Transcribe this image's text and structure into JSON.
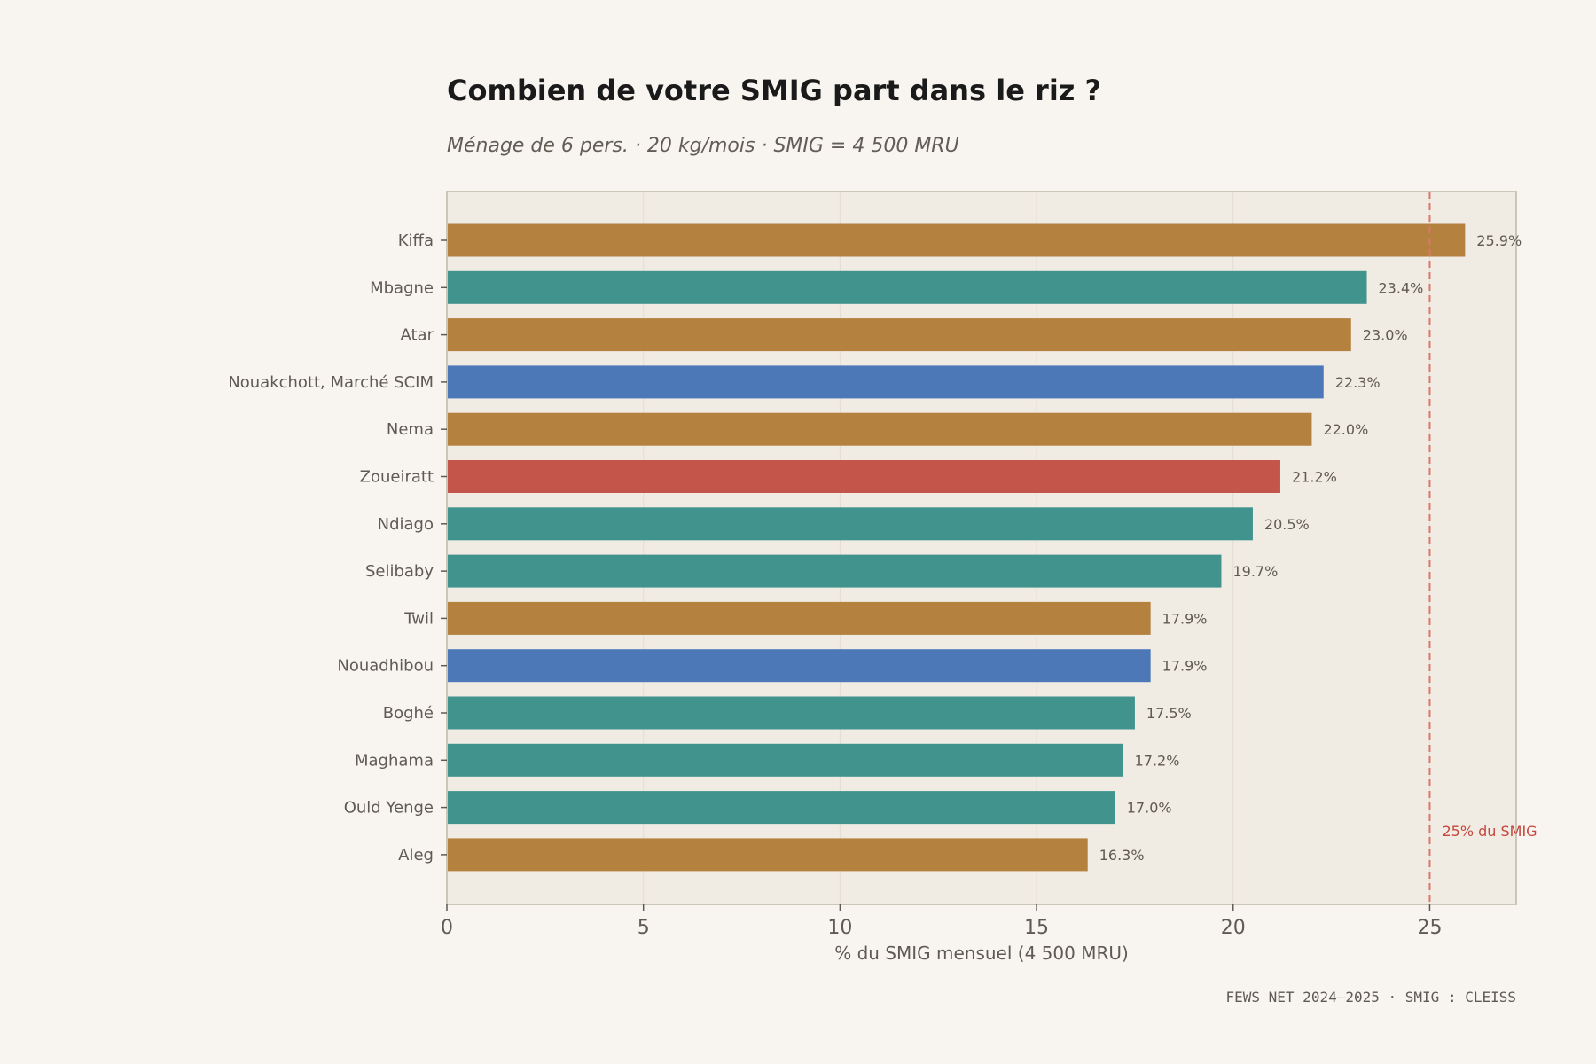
{
  "chart_data": {
    "type": "bar",
    "orientation": "horizontal",
    "title": "Combien de votre SMIG part dans le riz ?",
    "subtitle": "Ménage de 6 pers. · 20 kg/mois · SMIG = 4 500 MRU",
    "xlabel": "% du SMIG mensuel (4 500 MRU)",
    "ylabel": "",
    "xlim": [
      0,
      27.2
    ],
    "xticks": [
      0,
      5,
      10,
      15,
      20,
      25
    ],
    "grid": "vertical",
    "categories": [
      "Kiffa",
      "Mbagne",
      "Atar",
      "Nouakchott, Marché SCIM",
      "Nema",
      "Zoueiratt",
      "Ndiago",
      "Selibaby",
      "Twil",
      "Nouadhibou",
      "Boghé",
      "Maghama",
      "Ould Yenge",
      "Aleg"
    ],
    "values": [
      25.9,
      23.4,
      23.0,
      22.3,
      22.0,
      21.2,
      20.5,
      19.7,
      17.9,
      17.9,
      17.5,
      17.2,
      17.0,
      16.3
    ],
    "value_labels": [
      "25.9%",
      "23.4%",
      "23.0%",
      "22.3%",
      "22.0%",
      "21.2%",
      "20.5%",
      "19.7%",
      "17.9%",
      "17.9%",
      "17.5%",
      "17.2%",
      "17.0%",
      "16.3%"
    ],
    "bar_colors": [
      "#b5813f",
      "#41938e",
      "#b5813f",
      "#4c78b8",
      "#b5813f",
      "#c4554a",
      "#41938e",
      "#41938e",
      "#b5813f",
      "#4c78b8",
      "#41938e",
      "#41938e",
      "#41938e",
      "#b5813f"
    ],
    "reference_line": {
      "value": 25,
      "label": "25% du SMIG",
      "color": "#d9776c"
    },
    "footer": "FEWS NET 2024–2025 · SMIG : CLEISS"
  }
}
